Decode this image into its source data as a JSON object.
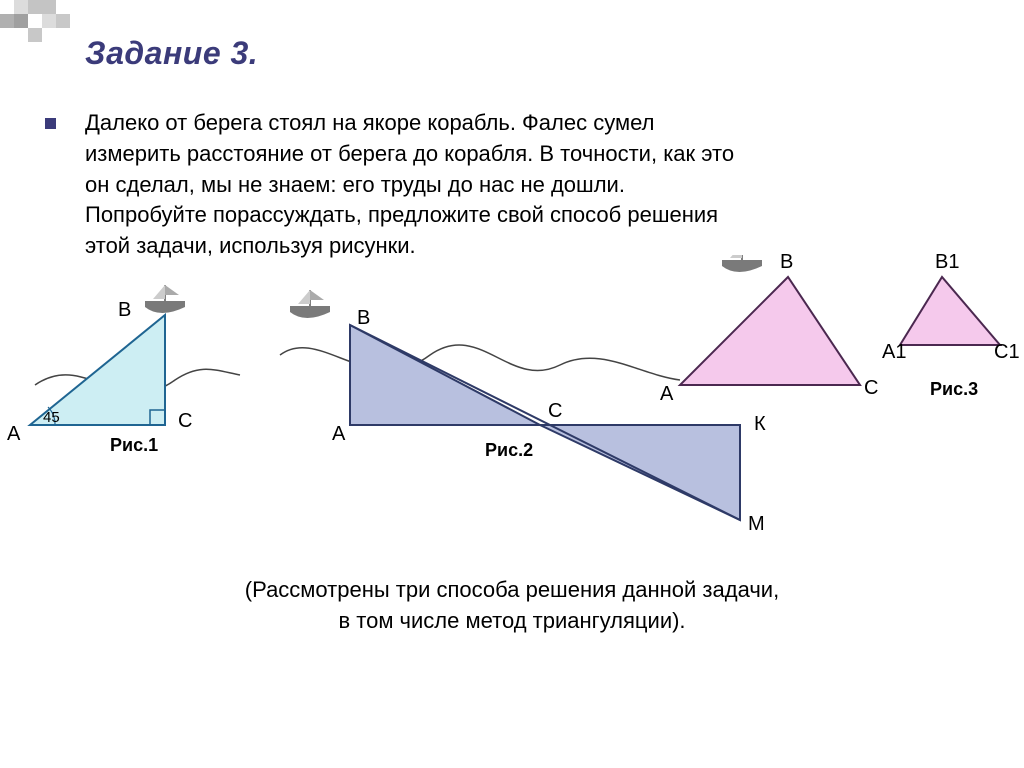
{
  "title": "Задание 3.",
  "body_lines": [
    "Далеко от берега стоял на якоре корабль. Фалес сумел",
    "измерить расстояние от берега до корабля. В точности, как это",
    "он сделал, мы не знаем: его труды до нас не дошли.",
    "Попробуйте порассуждать, предложите свой способ решения",
    "этой задачи, используя рисунки."
  ],
  "footnote_lines": [
    "(Рассмотрены три способа решения данной задачи,",
    "в том числе метод триангуляции)."
  ],
  "fig1": {
    "caption": "Рис.1",
    "labels": {
      "A": "А",
      "B": "В",
      "C": "С",
      "angle": "45"
    },
    "colors": {
      "fill": "#cdeef3",
      "stroke": "#1f6592"
    }
  },
  "fig2": {
    "caption": "Рис.2",
    "labels": {
      "A": "А",
      "B": "В",
      "C": "С",
      "K": "К",
      "M": "М"
    },
    "colors": {
      "fill": "#b8c0df",
      "stroke": "#2e3a67"
    }
  },
  "fig3": {
    "caption": "Рис.3",
    "labels": {
      "A": "А",
      "B": "В",
      "C": "С",
      "A1": "А1",
      "B1": "В1",
      "C1": "С1"
    },
    "colors": {
      "fill": "#f5c9ec",
      "stroke": "#4b2850"
    }
  },
  "decor": {
    "cells": [
      "#ffffff",
      "#dcdcdc",
      "#c4c4c4",
      "#c4c4c4",
      "#ffffff",
      "#ffffff",
      "#b0b0b0",
      "#a0a0a0",
      "#ffffff",
      "#dcdcdc",
      "#c8c8c8",
      "#ffffff",
      "#ffffff",
      "#ffffff",
      "#c8c8c8",
      "#ffffff",
      "#ffffff",
      "#ffffff"
    ]
  },
  "wave_stroke": "#444444"
}
